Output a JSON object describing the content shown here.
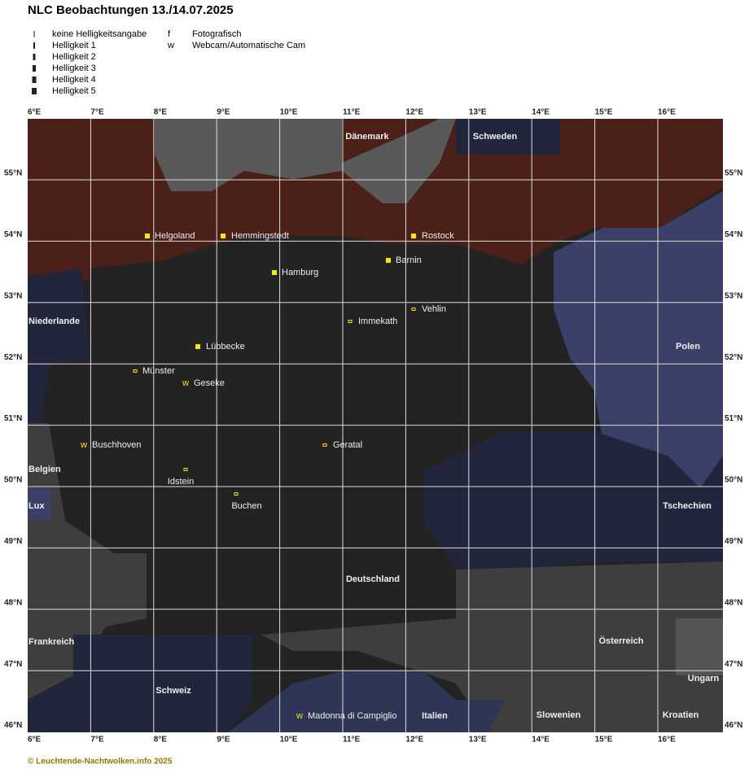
{
  "header": {
    "title": "NLC Beobachtungen 13./14.07.2025"
  },
  "legend": {
    "brightness": [
      "keine Helligkeitsangabe",
      "Helligkeit 1",
      "Helligkeit 2",
      "Helligkeit 3",
      "Helligkeit 4",
      "Helligkeit 5"
    ],
    "type": [
      {
        "symbol": "f",
        "label": "Fotografisch"
      },
      {
        "symbol": "w",
        "label": "Webcam/Automatische Cam"
      }
    ]
  },
  "axes": {
    "lon": [
      "6°E",
      "7°E",
      "8°E",
      "9°E",
      "10°E",
      "11°E",
      "12°E",
      "13°E",
      "14°E",
      "15°E",
      "16°E"
    ],
    "lat": [
      "55°N",
      "54°N",
      "53°N",
      "52°N",
      "51°N",
      "50°N",
      "49°N",
      "48°N",
      "47°N",
      "46°N"
    ]
  },
  "countries": [
    "Dänemark",
    "Schweden",
    "Niederlande",
    "Polen",
    "Belgien",
    "Lux",
    "Tschechien",
    "Deutschland",
    "Frankreich",
    "Österreich",
    "Ungarn",
    "Schweiz",
    "Italien",
    "Slowenien",
    "Kroatien"
  ],
  "stations": [
    "Helgoland",
    "Hemmingstedt",
    "Rostock",
    "Barnin",
    "Hamburg",
    "Vehlin",
    "Immekath",
    "Lübbecke",
    "Münster",
    "Geseke",
    "Buschhoven",
    "Geratal",
    "Idstein",
    "Buchen",
    "Madonna di Campiglio"
  ],
  "footer": "© Leuchtende-Nachtwolken.info 2025"
}
